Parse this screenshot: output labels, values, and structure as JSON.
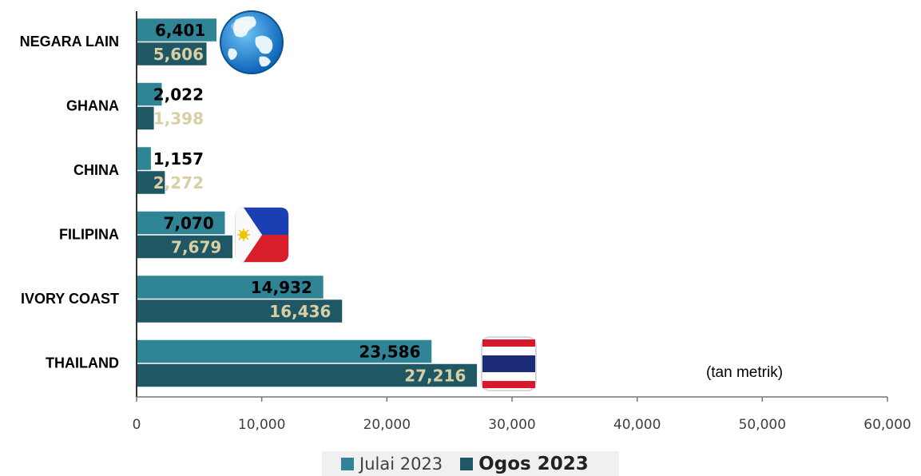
{
  "chart_data": {
    "type": "bar",
    "orientation": "horizontal",
    "categories": [
      "NEGARA LAIN",
      "GHANA",
      "CHINA",
      "FILIPINA",
      "IVORY COAST",
      "THAILAND"
    ],
    "series": [
      {
        "name": "Julai 2023",
        "values": [
          6401,
          2022,
          1157,
          7070,
          14932,
          23586
        ],
        "labels": [
          "6,401",
          "2,022",
          "1,157",
          "7,070",
          "14,932",
          "23,586"
        ],
        "color": "#2f8496",
        "label_color": "#000000"
      },
      {
        "name": "Ogos 2023",
        "values": [
          5606,
          1398,
          2272,
          7679,
          16436,
          27216
        ],
        "labels": [
          "5,606",
          "1,398",
          "2,272",
          "7,679",
          "16,436",
          "27,216"
        ],
        "color": "#1f5864",
        "label_color": "#d9cfa4"
      }
    ],
    "xlim": [
      0,
      60000
    ],
    "xticks": [
      0,
      10000,
      20000,
      30000,
      40000,
      50000,
      60000
    ],
    "xtick_labels": [
      "0",
      "10,000",
      "20,000",
      "30,000",
      "40,000",
      "50,000",
      "60,000"
    ],
    "unit_annotation": "(tan metrik)",
    "legend_position": "bottom",
    "grid": false
  },
  "icons": {
    "NEGARA LAIN": "globe-icon",
    "FILIPINA": "philippines-flag-icon",
    "THAILAND": "thailand-flag-icon"
  }
}
